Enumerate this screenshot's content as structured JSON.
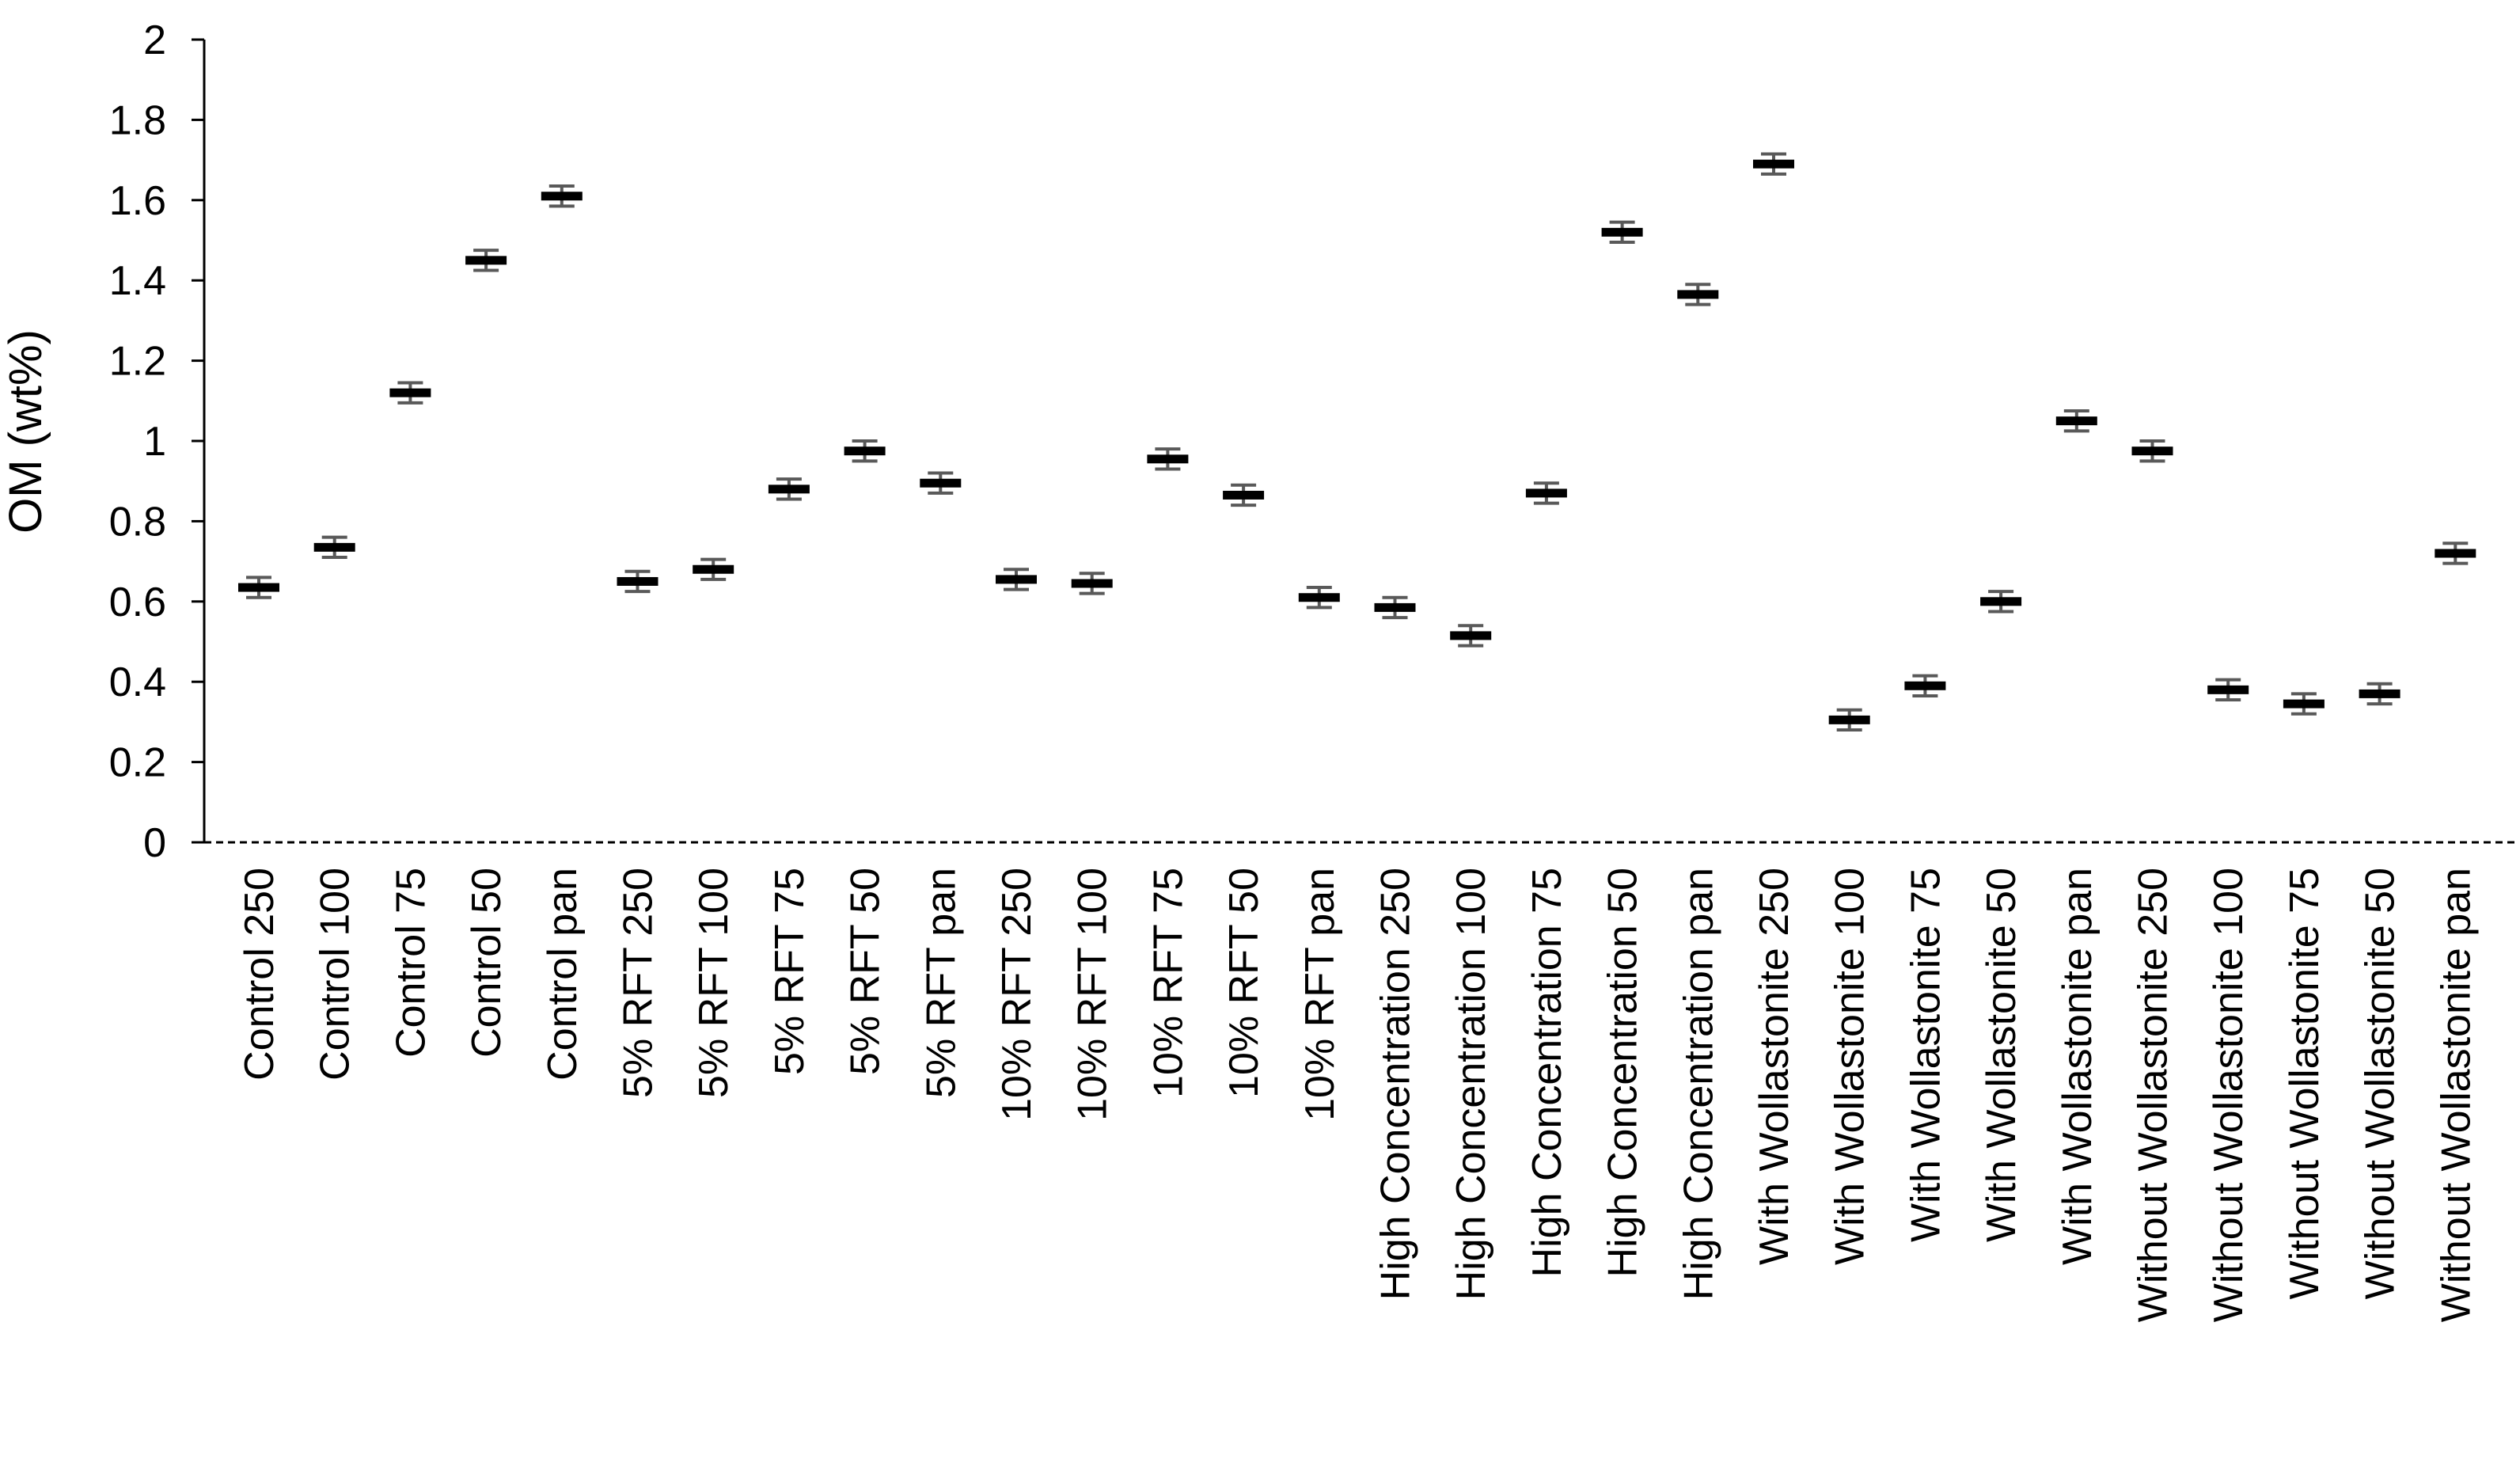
{
  "chart_data": {
    "type": "scatter",
    "title": "",
    "xlabel": "",
    "ylabel": "OM (wt%)",
    "ylim": [
      0,
      2
    ],
    "yticks": [
      "0",
      "0.2",
      "0.4",
      "0.6",
      "0.8",
      "1",
      "1.2",
      "1.4",
      "1.6",
      "1.8",
      "2"
    ],
    "grid": false,
    "legend": "none",
    "colors": {
      "marker": "#000000",
      "error_bar": "#595959",
      "axis": "#000000"
    },
    "categories": [
      "Control 250",
      "Control 100",
      "Control 75",
      "Control 50",
      "Control pan",
      "5% RFT 250",
      "5% RFT 100",
      "5% RFT 75",
      "5% RFT 50",
      "5% RFT pan",
      "10% RFT 250",
      "10% RFT 100",
      "10% RFT 75",
      "10% RFT 50",
      "10% RFT pan",
      "High Concentration 250",
      "High Concentration 100",
      "High Concentration 75",
      "High Concentration 50",
      "High Concentration pan",
      "With Wollastonite 250",
      "With Wollastonite 100",
      "With Wollastonite 75",
      "With Wollastonite 50",
      "With Wollastonite pan",
      "Without Wollastonite 250",
      "Without Wollastonite 100",
      "Without Wollastonite 75",
      "Without Wollastonite 50",
      "Without Wollastonite pan"
    ],
    "series": [
      {
        "values": [
          0.635,
          0.735,
          1.12,
          1.45,
          1.61,
          0.65,
          0.68,
          0.88,
          0.975,
          0.895,
          0.655,
          0.645,
          0.955,
          0.865,
          0.61,
          0.585,
          0.515,
          0.87,
          1.52,
          1.365,
          1.69,
          0.305,
          0.39,
          0.6,
          1.05,
          0.975,
          0.38,
          0.345,
          0.37,
          0.72
        ],
        "error": 0.025
      }
    ]
  }
}
